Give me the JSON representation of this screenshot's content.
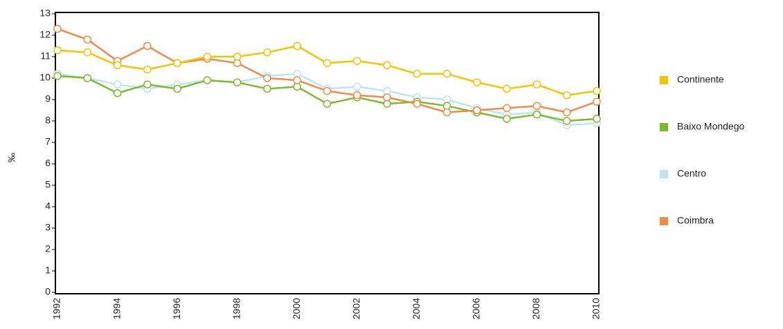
{
  "chart_data": {
    "type": "line",
    "y_label": "‰",
    "categories": [
      "1992",
      null,
      "1994",
      null,
      "1996",
      null,
      "1998",
      null,
      "2000",
      null,
      "2002",
      null,
      "2004",
      null,
      "2006",
      null,
      "2008",
      null,
      "2010"
    ],
    "series": [
      {
        "name": "Continente",
        "color": "#f5c400",
        "values": [
          11.3,
          11.2,
          10.6,
          10.4,
          10.7,
          11.0,
          11.0,
          11.2,
          11.5,
          10.7,
          10.8,
          10.6,
          10.2,
          10.2,
          9.8,
          9.5,
          9.7,
          9.2,
          9.4
        ]
      },
      {
        "name": "Baixo Mondego",
        "color": "#7dbb2a",
        "values": [
          10.1,
          10.0,
          9.3,
          9.7,
          9.5,
          9.9,
          9.8,
          9.5,
          9.6,
          8.8,
          9.1,
          8.8,
          8.9,
          8.7,
          8.4,
          8.1,
          8.3,
          8.0,
          8.1
        ]
      },
      {
        "name": "Centro",
        "color": "#bde3f5",
        "values": [
          10.2,
          10.0,
          9.7,
          9.5,
          9.7,
          9.9,
          9.8,
          10.1,
          10.2,
          9.5,
          9.6,
          9.4,
          9.1,
          9.0,
          8.6,
          8.3,
          8.4,
          7.8,
          7.9
        ]
      },
      {
        "name": "Coimbra",
        "color": "#f08a45",
        "values": [
          12.3,
          11.8,
          10.8,
          11.5,
          10.7,
          10.9,
          10.7,
          10.0,
          9.9,
          9.4,
          9.2,
          9.1,
          8.8,
          8.4,
          8.5,
          8.6,
          8.7,
          8.4,
          8.9
        ]
      }
    ],
    "ylim": [
      0,
      13
    ],
    "yticks": [
      0,
      1,
      2,
      3,
      4,
      5,
      6,
      7,
      8,
      9,
      10,
      11,
      12,
      13
    ],
    "legend": "right"
  }
}
